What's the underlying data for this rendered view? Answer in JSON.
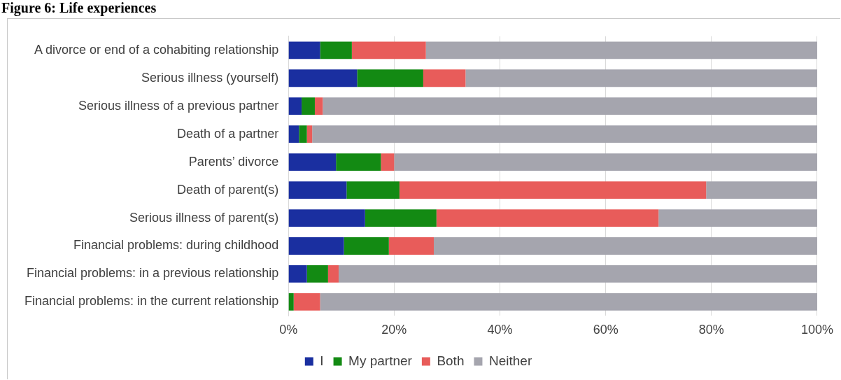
{
  "chart_data": {
    "type": "bar",
    "orientation": "horizontal",
    "stacked": true,
    "title": "Figure 6: Life experiences",
    "categories": [
      "A divorce or end of a cohabiting relationship",
      "Serious illness (yourself)",
      "Serious illness of a previous partner",
      "Death of a partner",
      "Parents’ divorce",
      "Death of parent(s)",
      "Serious illness of parent(s)",
      "Financial problems: during childhood",
      "Financial problems: in a previous relationship",
      "Financial problems: in the current relationship"
    ],
    "series": [
      {
        "name": "I",
        "color": "#1a2fa0",
        "values": [
          6,
          13,
          2.5,
          2,
          9,
          11,
          14.5,
          10.5,
          3.5,
          0
        ]
      },
      {
        "name": "My partner",
        "color": "#138a13",
        "values": [
          6,
          12.5,
          2.5,
          1.5,
          8.5,
          10,
          13.5,
          8.5,
          4,
          1
        ]
      },
      {
        "name": "Both",
        "color": "#e85c5a",
        "values": [
          14,
          8,
          1.5,
          1,
          2.5,
          58,
          42,
          8.5,
          2,
          5
        ]
      },
      {
        "name": "Neither",
        "color": "#a5a5ae",
        "values": [
          74,
          66.5,
          93.5,
          95.5,
          80,
          21,
          30,
          72.5,
          90.5,
          94
        ]
      }
    ],
    "xlim": [
      0,
      100
    ],
    "xticks": [
      {
        "value": 0,
        "label": "0%"
      },
      {
        "value": 20,
        "label": "20%"
      },
      {
        "value": 40,
        "label": "40%"
      },
      {
        "value": 60,
        "label": "60%"
      },
      {
        "value": 80,
        "label": "80%"
      },
      {
        "value": 100,
        "label": "100%"
      }
    ],
    "grid": "x",
    "legend": "bottom"
  }
}
